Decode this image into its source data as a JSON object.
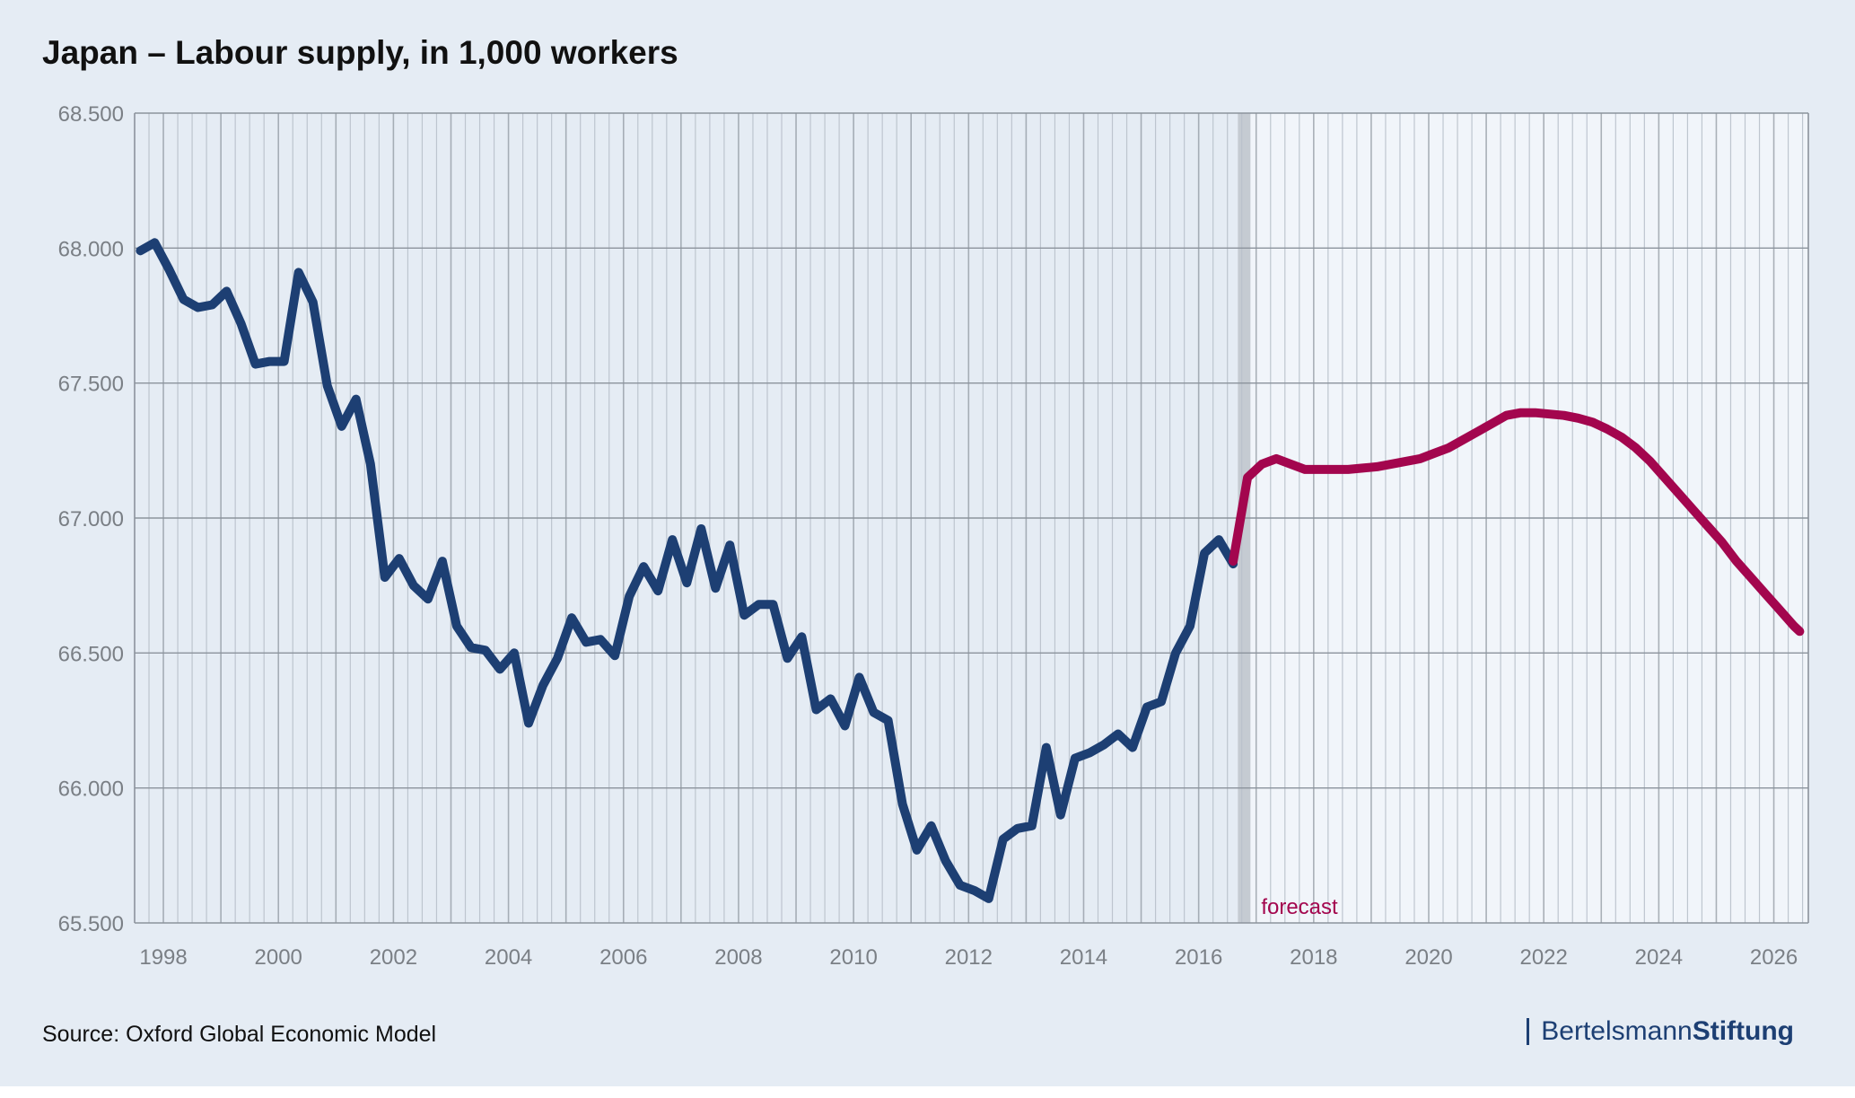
{
  "title": "Japan – Labour supply, in 1,000 workers",
  "source": "Source: Oxford Global Economic Model",
  "logo": {
    "part1": "Bertelsmann",
    "part2": "Stiftung"
  },
  "colors": {
    "background": "#e5ecf4",
    "historical_series": "#1d3f73",
    "forecast_series": "#a3064e",
    "grid_major": "#8b939c",
    "grid_minor": "#b9c1cb",
    "forecast_area": "#f1f5fa",
    "divider": "#c5cbd2",
    "tick_text": "#7a7f85"
  },
  "chart_data": {
    "type": "line",
    "title": "Japan – Labour supply, in 1,000 workers",
    "xlabel": "",
    "ylabel": "",
    "xlim": [
      1997.5,
      2026.6
    ],
    "ylim": [
      65500,
      68500
    ],
    "yticks": [
      65500,
      66000,
      66500,
      67000,
      67500,
      68000,
      68500
    ],
    "ytick_labels": [
      "65.500",
      "66.000",
      "66.500",
      "67.000",
      "67.500",
      "68.000",
      "68.500"
    ],
    "xticks": [
      1998,
      2000,
      2002,
      2004,
      2006,
      2008,
      2010,
      2012,
      2014,
      2016,
      2018,
      2020,
      2022,
      2024,
      2026
    ],
    "xtick_labels": [
      "1998",
      "2000",
      "2002",
      "2004",
      "2006",
      "2008",
      "2010",
      "2012",
      "2014",
      "2016",
      "2018",
      "2020",
      "2022",
      "2024",
      "2026"
    ],
    "grid": true,
    "forecast_start": 2016.9,
    "annotation": "forecast",
    "series": [
      {
        "role": "historical",
        "x": [
          1997.6,
          1997.85,
          1998.1,
          1998.35,
          1998.6,
          1998.85,
          1999.1,
          1999.35,
          1999.6,
          1999.85,
          2000.1,
          2000.35,
          2000.6,
          2000.85,
          2001.1,
          2001.35,
          2001.6,
          2001.85,
          2002.1,
          2002.35,
          2002.6,
          2002.85,
          2003.1,
          2003.35,
          2003.6,
          2003.85,
          2004.1,
          2004.35,
          2004.6,
          2004.85,
          2005.1,
          2005.35,
          2005.6,
          2005.85,
          2006.1,
          2006.35,
          2006.6,
          2006.85,
          2007.1,
          2007.35,
          2007.6,
          2007.85,
          2008.1,
          2008.35,
          2008.6,
          2008.85,
          2009.1,
          2009.35,
          2009.6,
          2009.85,
          2010.1,
          2010.35,
          2010.6,
          2010.85,
          2011.1,
          2011.35,
          2011.6,
          2011.85,
          2012.1,
          2012.35,
          2012.6,
          2012.85,
          2013.1,
          2013.35,
          2013.6,
          2013.85,
          2014.1,
          2014.35,
          2014.6,
          2014.85,
          2015.1,
          2015.35,
          2015.6,
          2015.85,
          2016.1,
          2016.35,
          2016.6
        ],
        "values": [
          67990,
          68020,
          67920,
          67810,
          67780,
          67790,
          67840,
          67720,
          67570,
          67580,
          67580,
          67910,
          67800,
          67490,
          67340,
          67440,
          67200,
          66780,
          66850,
          66750,
          66700,
          66840,
          66600,
          66520,
          66510,
          66440,
          66500,
          66240,
          66380,
          66480,
          66630,
          66540,
          66550,
          66490,
          66710,
          66820,
          66730,
          66920,
          66760,
          66960,
          66740,
          66900,
          66640,
          66680,
          66680,
          66480,
          66560,
          66290,
          66330,
          66230,
          66410,
          66280,
          66250,
          65940,
          65770,
          65860,
          65730,
          65640,
          65620,
          65590,
          65810,
          65850,
          65860,
          66150,
          65900,
          66110,
          66130,
          66160,
          66200,
          66150,
          66300,
          66320,
          66500,
          66600,
          66870,
          66920,
          66830
        ]
      },
      {
        "role": "forecast",
        "x": [
          2016.6,
          2016.85,
          2017.1,
          2017.35,
          2017.6,
          2017.85,
          2018.1,
          2018.35,
          2018.6,
          2018.85,
          2019.1,
          2019.35,
          2019.6,
          2019.85,
          2020.1,
          2020.35,
          2020.6,
          2020.85,
          2021.1,
          2021.35,
          2021.6,
          2021.85,
          2022.1,
          2022.35,
          2022.6,
          2022.85,
          2023.1,
          2023.35,
          2023.6,
          2023.85,
          2024.1,
          2024.35,
          2024.6,
          2024.85,
          2025.1,
          2025.35,
          2025.6,
          2025.85,
          2026.1,
          2026.35,
          2026.45
        ],
        "values": [
          66840,
          67150,
          67200,
          67220,
          67200,
          67180,
          67180,
          67180,
          67180,
          67185,
          67190,
          67200,
          67210,
          67220,
          67240,
          67260,
          67290,
          67320,
          67350,
          67380,
          67390,
          67390,
          67385,
          67380,
          67370,
          67355,
          67330,
          67300,
          67260,
          67210,
          67150,
          67090,
          67030,
          66970,
          66910,
          66840,
          66780,
          66720,
          66660,
          66600,
          66580
        ]
      }
    ]
  }
}
